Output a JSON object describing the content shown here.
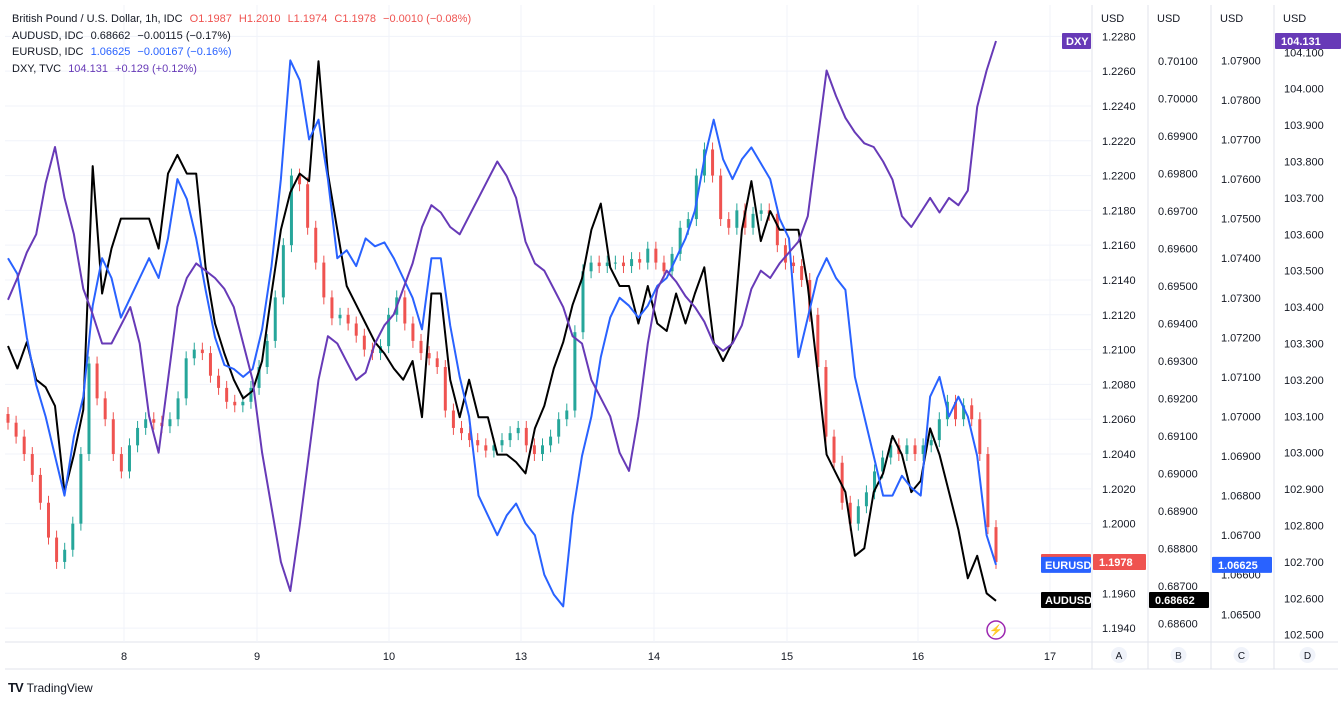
{
  "legend": {
    "rows": [
      {
        "symbol": "British Pound / U.S. Dollar, 1h, IDC",
        "color": "#ef5350",
        "values": [
          "O1.1987",
          "H1.2010",
          "L1.1974",
          "C1.1978",
          "−0.0010 (−0.08%)"
        ]
      },
      {
        "symbol": "AUDUSD, IDC",
        "color": "#131722",
        "values": [
          "0.68662",
          "−0.00115 (−0.17%)"
        ]
      },
      {
        "symbol": "EURUSD, IDC",
        "color": "#2962ff",
        "values": [
          "1.06625",
          "−0.00167 (−0.16%)"
        ]
      },
      {
        "symbol": "DXY, TVC",
        "color": "#673ab7",
        "values": [
          "104.131",
          "+0.129 (+0.12%)"
        ]
      }
    ]
  },
  "footer": {
    "brand": "TradingView",
    "logo": "TV"
  },
  "scale_letters": [
    "A",
    "B",
    "C",
    "D"
  ],
  "colors": {
    "up": "#26a69a",
    "down": "#ef5350",
    "aud": "#000000",
    "eur": "#2962ff",
    "dxy": "#673ab7",
    "grid": "#f0f3fa"
  },
  "chart_data": {
    "type": "line",
    "x_tick_labels": [
      "8",
      "9",
      "10",
      "13",
      "14",
      "15",
      "16",
      "17"
    ],
    "axes": [
      {
        "id": "A",
        "unit": "USD",
        "ticks": [
          "1.2280",
          "1.2260",
          "1.2240",
          "1.2220",
          "1.2200",
          "1.2180",
          "1.2160",
          "1.2140",
          "1.2120",
          "1.2100",
          "1.2080",
          "1.2060",
          "1.2040",
          "1.2020",
          "1.2000",
          "1.1960",
          "1.1940"
        ],
        "range": [
          1.1932,
          1.2298
        ]
      },
      {
        "id": "B",
        "unit": "USD",
        "ticks": [
          "0.70200",
          "0.70100",
          "0.70000",
          "0.69900",
          "0.69800",
          "0.69700",
          "0.69600",
          "0.69500",
          "0.69400",
          "0.69300",
          "0.69200",
          "0.69100",
          "0.69000",
          "0.68900",
          "0.68800",
          "0.68700",
          "0.68600"
        ],
        "range": [
          0.6855,
          0.7025
        ]
      },
      {
        "id": "C",
        "unit": "USD",
        "ticks": [
          "1.07900",
          "1.07800",
          "1.07700",
          "1.07600",
          "1.07500",
          "1.07400",
          "1.07300",
          "1.07200",
          "1.07100",
          "1.07000",
          "1.06900",
          "1.06800",
          "1.06700",
          "1.06600",
          "1.06500"
        ],
        "range": [
          1.0643,
          1.0804
        ]
      },
      {
        "id": "D",
        "unit": "USD",
        "ticks": [
          "104.200",
          "104.100",
          "104.000",
          "103.900",
          "103.800",
          "103.700",
          "103.600",
          "103.500",
          "103.400",
          "103.300",
          "103.200",
          "103.100",
          "103.000",
          "102.900",
          "102.800",
          "102.700",
          "102.600",
          "102.500"
        ],
        "range": [
          102.48,
          104.23
        ]
      }
    ],
    "price_tags": [
      {
        "label": "DXY",
        "value": "104.131",
        "color": "#673ab7",
        "axis": "D"
      },
      {
        "label": "GBPUSD",
        "value": "1.1978",
        "color": "#ef5350",
        "axis": "A"
      },
      {
        "label": "EURUSD",
        "value": "1.06625",
        "color": "#2962ff",
        "axis": "C"
      },
      {
        "label": "AUDUSD",
        "value": "0.68662",
        "color": "#000000",
        "axis": "B"
      }
    ],
    "series": [
      {
        "name": "GBPUSD",
        "axis": "A",
        "kind": "candles",
        "values": [
          1.2058,
          1.205,
          1.204,
          1.2028,
          1.2012,
          1.1992,
          1.1978,
          1.1985,
          1.2,
          1.204,
          1.2092,
          1.2072,
          1.206,
          1.204,
          1.203,
          1.2045,
          1.2055,
          1.206,
          1.2058,
          1.2056,
          1.206,
          1.2072,
          1.2095,
          1.21,
          1.2098,
          1.2085,
          1.2078,
          1.207,
          1.2068,
          1.207,
          1.2078,
          1.209,
          1.2105,
          1.213,
          1.216,
          1.22,
          1.2195,
          1.217,
          1.215,
          1.213,
          1.2118,
          1.212,
          1.2115,
          1.2108,
          1.21,
          1.2098,
          1.2102,
          1.212,
          1.213,
          1.2115,
          1.2105,
          1.2098,
          1.2095,
          1.209,
          1.2065,
          1.2055,
          1.2052,
          1.2048,
          1.2045,
          1.2042,
          1.2045,
          1.2048,
          1.2052,
          1.2055,
          1.2045,
          1.204,
          1.2045,
          1.205,
          1.206,
          1.2065,
          1.211,
          1.2145,
          1.215,
          1.2148,
          1.215,
          1.215,
          1.2148,
          1.2152,
          1.215,
          1.2158,
          1.215,
          1.2145,
          1.2155,
          1.217,
          1.2175,
          1.22,
          1.2215,
          1.22,
          1.2175,
          1.217,
          1.218,
          1.217,
          1.2178,
          1.218,
          1.2178,
          1.216,
          1.215,
          1.2148,
          1.214,
          1.212,
          1.209,
          1.205,
          1.2035,
          1.2012,
          1.2,
          1.201,
          1.2018,
          1.203,
          1.2038,
          1.2045,
          1.204,
          1.2045,
          1.204,
          1.2045,
          1.2048,
          1.206,
          1.207,
          1.206,
          1.2068,
          1.206,
          1.204,
          1.1998,
          1.1978
        ]
      },
      {
        "name": "AUDUSD",
        "axis": "B",
        "kind": "line",
        "values": [
          0.6934,
          0.6928,
          0.6935,
          0.6925,
          0.6923,
          0.6918,
          0.6895,
          0.6905,
          0.6917,
          0.6982,
          0.6948,
          0.696,
          0.6968,
          0.6968,
          0.6968,
          0.6968,
          0.696,
          0.698,
          0.6985,
          0.698,
          0.698,
          0.6955,
          0.694,
          0.6932,
          0.6925,
          0.692,
          0.6922,
          0.693,
          0.6948,
          0.6965,
          0.6975,
          0.698,
          0.6978,
          0.701,
          0.698,
          0.6965,
          0.695,
          0.6945,
          0.694,
          0.6935,
          0.6932,
          0.6928,
          0.6925,
          0.693,
          0.6915,
          0.6948,
          0.6948,
          0.6925,
          0.6915,
          0.6925,
          0.6915,
          0.6915,
          0.6905,
          0.6905,
          0.6903,
          0.69,
          0.6912,
          0.6918,
          0.6928,
          0.6935,
          0.6945,
          0.6952,
          0.6965,
          0.6972,
          0.6955,
          0.695,
          0.695,
          0.694,
          0.695,
          0.694,
          0.6938,
          0.6948,
          0.694,
          0.6948,
          0.6955,
          0.6935,
          0.693,
          0.6935,
          0.6965,
          0.6978,
          0.6962,
          0.697,
          0.6965,
          0.6965,
          0.6965,
          0.695,
          0.6928,
          0.6905,
          0.69,
          0.6895,
          0.6878,
          0.688,
          0.6895,
          0.69,
          0.691,
          0.6905,
          0.6895,
          0.6898,
          0.6912,
          0.6905,
          0.6895,
          0.6885,
          0.6872,
          0.6878,
          0.6868,
          0.6866
        ]
      },
      {
        "name": "EURUSD",
        "axis": "C",
        "kind": "line",
        "values": [
          1.074,
          1.0736,
          1.072,
          1.0708,
          1.07,
          1.069,
          1.068,
          1.0695,
          1.0705,
          1.0728,
          1.074,
          1.0735,
          1.0725,
          1.073,
          1.0735,
          1.074,
          1.0735,
          1.0745,
          1.076,
          1.0755,
          1.0745,
          1.0732,
          1.072,
          1.0713,
          1.0712,
          1.071,
          1.0712,
          1.0722,
          1.0738,
          1.076,
          1.079,
          1.0785,
          1.077,
          1.0775,
          1.076,
          1.074,
          1.0742,
          1.0738,
          1.0745,
          1.0743,
          1.0744,
          1.074,
          1.0735,
          1.073,
          1.0722,
          1.074,
          1.074,
          1.0723,
          1.071,
          1.07,
          1.068,
          1.0675,
          1.067,
          1.0675,
          1.0678,
          1.0673,
          1.067,
          1.066,
          1.0655,
          1.0652,
          1.0675,
          1.069,
          1.07,
          1.0715,
          1.0725,
          1.073,
          1.0728,
          1.0725,
          1.0728,
          1.0733,
          1.0735,
          1.074,
          1.0745,
          1.0752,
          1.0765,
          1.0775,
          1.0765,
          1.076,
          1.0765,
          1.0768,
          1.0764,
          1.076,
          1.075,
          1.0745,
          1.0715,
          1.0725,
          1.0735,
          1.074,
          1.0735,
          1.0732,
          1.071,
          1.07,
          1.069,
          1.068,
          1.068,
          1.0685,
          1.0682,
          1.068,
          1.0705,
          1.071,
          1.07,
          1.0705,
          1.07,
          1.069,
          1.067,
          1.06625
        ]
      },
      {
        "name": "DXY",
        "axis": "D",
        "kind": "line",
        "values": [
          103.42,
          103.48,
          103.55,
          103.6,
          103.74,
          103.84,
          103.7,
          103.6,
          103.45,
          103.38,
          103.3,
          103.3,
          103.35,
          103.4,
          103.3,
          103.1,
          103.0,
          103.2,
          103.4,
          103.48,
          103.52,
          103.5,
          103.48,
          103.45,
          103.4,
          103.3,
          103.2,
          103.0,
          102.85,
          102.7,
          102.62,
          102.8,
          103.0,
          103.2,
          103.32,
          103.3,
          103.25,
          103.2,
          103.22,
          103.3,
          103.35,
          103.38,
          103.45,
          103.52,
          103.62,
          103.68,
          103.66,
          103.62,
          103.6,
          103.65,
          103.7,
          103.75,
          103.8,
          103.76,
          103.7,
          103.58,
          103.52,
          103.5,
          103.45,
          103.4,
          103.32,
          103.3,
          103.2,
          103.15,
          103.1,
          103.0,
          102.95,
          103.1,
          103.3,
          103.45,
          103.5,
          103.47,
          103.43,
          103.4,
          103.36,
          103.3,
          103.28,
          103.3,
          103.35,
          103.45,
          103.5,
          103.48,
          103.52,
          103.55,
          103.58,
          103.65,
          103.85,
          104.05,
          103.98,
          103.92,
          103.88,
          103.85,
          103.84,
          103.8,
          103.75,
          103.65,
          103.62,
          103.66,
          103.7,
          103.66,
          103.7,
          103.68,
          103.72,
          103.95,
          104.05,
          104.131
        ]
      }
    ]
  }
}
